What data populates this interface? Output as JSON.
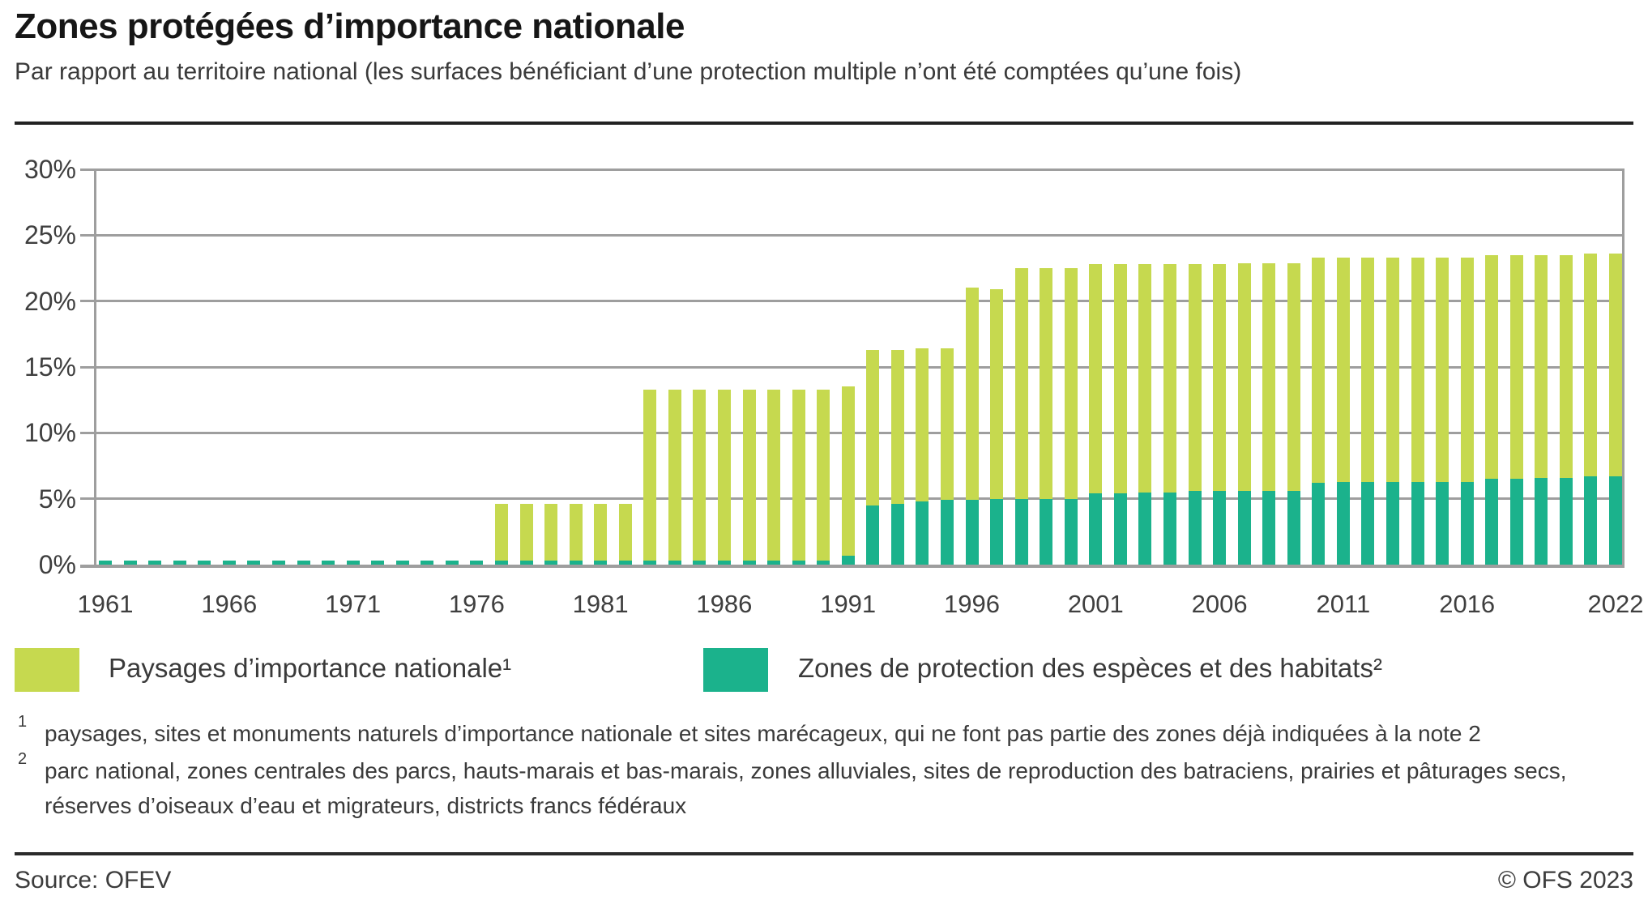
{
  "header": {
    "title": "Zones protégées d’importance nationale",
    "subtitle": "Par rapport au territoire national (les surfaces bénéficiant d’une protection multiple n’ont été comptées qu’une fois)"
  },
  "chart_data": {
    "type": "bar",
    "stacked": true,
    "x": [
      1961,
      1962,
      1963,
      1964,
      1965,
      1966,
      1967,
      1968,
      1969,
      1970,
      1971,
      1972,
      1973,
      1974,
      1975,
      1976,
      1977,
      1978,
      1979,
      1980,
      1981,
      1982,
      1983,
      1984,
      1985,
      1986,
      1987,
      1988,
      1989,
      1990,
      1991,
      1992,
      1993,
      1994,
      1995,
      1996,
      1997,
      1998,
      1999,
      2000,
      2001,
      2002,
      2003,
      2004,
      2005,
      2006,
      2007,
      2008,
      2009,
      2010,
      2011,
      2012,
      2013,
      2014,
      2015,
      2016,
      2017,
      2018,
      2019,
      2020,
      2021,
      2022
    ],
    "series": [
      {
        "name": "Zones de protection des espèces et des habitats",
        "color": "#1bb28c",
        "values": [
          0.3,
          0.3,
          0.3,
          0.3,
          0.3,
          0.3,
          0.3,
          0.3,
          0.3,
          0.3,
          0.3,
          0.3,
          0.3,
          0.3,
          0.3,
          0.3,
          0.3,
          0.3,
          0.3,
          0.3,
          0.3,
          0.3,
          0.3,
          0.3,
          0.3,
          0.3,
          0.3,
          0.3,
          0.3,
          0.3,
          0.7,
          4.5,
          4.6,
          4.8,
          4.9,
          4.9,
          5.0,
          5.0,
          5.0,
          5.0,
          5.4,
          5.4,
          5.5,
          5.5,
          5.6,
          5.6,
          5.6,
          5.6,
          5.6,
          6.2,
          6.3,
          6.3,
          6.3,
          6.3,
          6.3,
          6.3,
          6.5,
          6.5,
          6.6,
          6.6,
          6.7,
          6.7
        ]
      },
      {
        "name": "Paysages d’importance nationale",
        "color": "#c6d94f",
        "values": [
          0,
          0,
          0,
          0,
          0,
          0,
          0,
          0,
          0,
          0,
          0,
          0,
          0,
          0,
          0,
          0,
          4.3,
          4.3,
          4.3,
          4.3,
          4.3,
          4.3,
          13.0,
          13.0,
          13.0,
          13.0,
          13.0,
          13.0,
          13.0,
          13.0,
          12.8,
          11.8,
          11.7,
          11.6,
          11.5,
          16.1,
          15.9,
          17.5,
          17.5,
          17.5,
          17.4,
          17.4,
          17.3,
          17.3,
          17.2,
          17.2,
          17.3,
          17.3,
          17.3,
          17.1,
          17.0,
          17.0,
          17.0,
          17.0,
          17.0,
          17.0,
          17.0,
          17.0,
          16.9,
          16.9,
          16.9,
          16.9
        ]
      }
    ],
    "title": "Zones protégées d’importance nationale",
    "xlabel": "",
    "ylabel": "",
    "ylim": [
      0,
      30
    ],
    "yticks": [
      "0%",
      "5%",
      "10%",
      "15%",
      "20%",
      "25%",
      "30%"
    ],
    "xticks": [
      1961,
      1966,
      1971,
      1976,
      1981,
      1986,
      1991,
      1996,
      2001,
      2006,
      2011,
      2016,
      2022
    ],
    "grid": true,
    "legend_position": "bottom"
  },
  "legend": [
    {
      "label": "Paysages d’importance nationale¹",
      "color": "#c6d94f"
    },
    {
      "label": "Zones de protection des espèces et des habitats²",
      "color": "#1bb28c"
    }
  ],
  "footnotes": [
    {
      "marker": "1",
      "text": "paysages, sites et monuments naturels d’importance nationale et sites marécageux, qui ne font pas partie des zones déjà indiquées à la note 2"
    },
    {
      "marker": "2",
      "text": "parc national, zones centrales des parcs, hauts-marais et bas-marais, zones alluviales, sites de reproduction des batraciens, prairies et pâturages secs, réserves d’oiseaux d’eau et migrateurs, districts francs fédéraux"
    }
  ],
  "footer": {
    "source": "Source: OFEV",
    "copyright": "© OFS 2023"
  }
}
